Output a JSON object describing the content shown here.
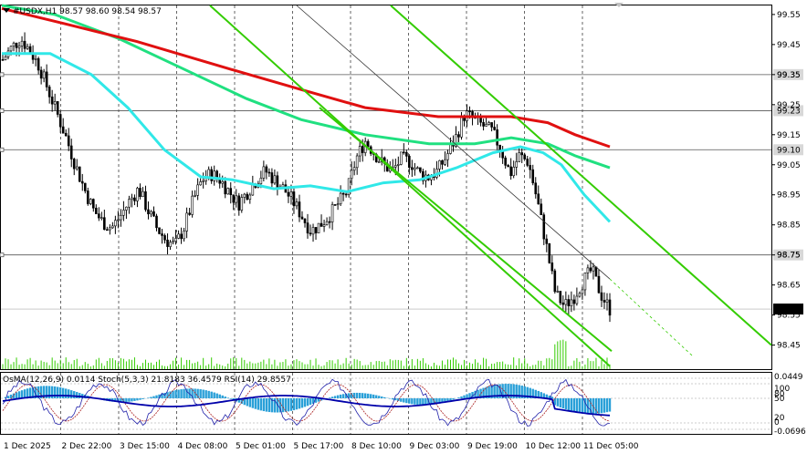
{
  "header": {
    "symbol_info": "#USDX,H1  98.57 98.60 98.54 98.57"
  },
  "osc_header": "OsMA(12,26,9) 0.0114  Stoch(5,3,3) 21.8183 36.4579  RSI(14) 29.8557",
  "colors": {
    "ma_red": "#e01010",
    "ma_green": "#20e080",
    "ma_cyan": "#30e8e8",
    "channel": "#33cc00",
    "candle": "#000000",
    "volume": "#33cc00",
    "osma": "#2aa0d8",
    "stoch_main": "#2222aa",
    "stoch_signal": "#aa2222",
    "rsi": "#0000aa"
  },
  "chart_data": {
    "type": "candlestick",
    "symbol": "#USDX",
    "timeframe": "H1",
    "ylim": [
      98.37,
      99.58
    ],
    "price_ticks": [
      "99.55",
      "99.45",
      "99.35",
      "99.25",
      "99.15",
      "99.05",
      "98.95",
      "98.85",
      "98.75",
      "98.65",
      "98.55",
      "98.45"
    ],
    "hlines": [
      {
        "price": 99.35,
        "label": "99.35"
      },
      {
        "price": 99.23,
        "label": "99.23"
      },
      {
        "price": 99.1,
        "label": "99.10"
      },
      {
        "price": 98.75,
        "label": "98.75"
      }
    ],
    "current_price": {
      "price": 98.57,
      "label": "98.57"
    },
    "x_labels": [
      "1 Dec 2025",
      "2 Dec 22:00",
      "3 Dec 15:00",
      "4 Dec 08:00",
      "5 Dec 01:00",
      "5 Dec 17:00",
      "8 Dec 10:00",
      "9 Dec 03:00",
      "9 Dec 19:00",
      "10 Dec 12:00",
      "11 Dec 05:00"
    ],
    "close_path": [
      99.4,
      99.44,
      99.47,
      99.43,
      99.38,
      99.3,
      99.22,
      99.14,
      99.05,
      98.97,
      98.9,
      98.86,
      98.84,
      98.88,
      98.93,
      98.97,
      98.9,
      98.84,
      98.8,
      98.78,
      98.84,
      98.93,
      99.0,
      99.02,
      99.0,
      98.96,
      98.92,
      98.96,
      99.0,
      99.03,
      99.0,
      98.97,
      98.93,
      98.88,
      98.83,
      98.85,
      98.88,
      98.92,
      98.96,
      99.07,
      99.13,
      99.09,
      99.05,
      99.03,
      99.07,
      99.06,
      99.02,
      99.01,
      99.03,
      99.08,
      99.14,
      99.22,
      99.2,
      99.18,
      99.16,
      99.1,
      99.02,
      99.08,
      99.06,
      98.93,
      98.78,
      98.62,
      98.58,
      98.61,
      98.66,
      98.7,
      98.62,
      98.57
    ],
    "ma_red": [
      [
        2,
        99.57
      ],
      [
        70,
        99.52
      ],
      [
        150,
        99.46
      ],
      [
        250,
        99.37
      ],
      [
        330,
        99.3
      ],
      [
        400,
        99.24
      ],
      [
        480,
        99.21
      ],
      [
        560,
        99.21
      ],
      [
        600,
        99.19
      ],
      [
        630,
        99.15
      ],
      [
        668,
        99.11
      ]
    ],
    "ma_green": [
      [
        2,
        99.58
      ],
      [
        60,
        99.55
      ],
      [
        130,
        99.47
      ],
      [
        200,
        99.37
      ],
      [
        270,
        99.27
      ],
      [
        330,
        99.2
      ],
      [
        400,
        99.15
      ],
      [
        470,
        99.12
      ],
      [
        520,
        99.12
      ],
      [
        560,
        99.14
      ],
      [
        600,
        99.12
      ],
      [
        630,
        99.08
      ],
      [
        668,
        99.04
      ]
    ],
    "ma_cyan": [
      [
        2,
        99.42
      ],
      [
        55,
        99.42
      ],
      [
        100,
        99.35
      ],
      [
        140,
        99.24
      ],
      [
        180,
        99.1
      ],
      [
        220,
        99.01
      ],
      [
        255,
        99.0
      ],
      [
        300,
        98.97
      ],
      [
        340,
        98.98
      ],
      [
        380,
        98.96
      ],
      [
        420,
        98.99
      ],
      [
        460,
        99.0
      ],
      [
        500,
        99.04
      ],
      [
        540,
        99.09
      ],
      [
        570,
        99.11
      ],
      [
        595,
        99.09
      ],
      [
        615,
        99.05
      ],
      [
        640,
        98.95
      ],
      [
        668,
        98.86
      ]
    ],
    "channel_lines": [
      [
        [
          230,
          99.58
        ],
        [
          668,
          98.38
        ]
      ],
      [
        [
          428,
          99.58
        ],
        [
          845,
          98.45
        ]
      ],
      [
        [
          350,
          99.24
        ],
        [
          670,
          98.43
        ]
      ]
    ],
    "thin_trend": [
      [
        325,
        99.58
      ],
      [
        668,
        98.67
      ],
      [
        760,
        98.41
      ]
    ],
    "osc_ticks": [
      "0.0449",
      "100",
      "80",
      "50",
      "20",
      "0",
      "-0.0696"
    ]
  }
}
